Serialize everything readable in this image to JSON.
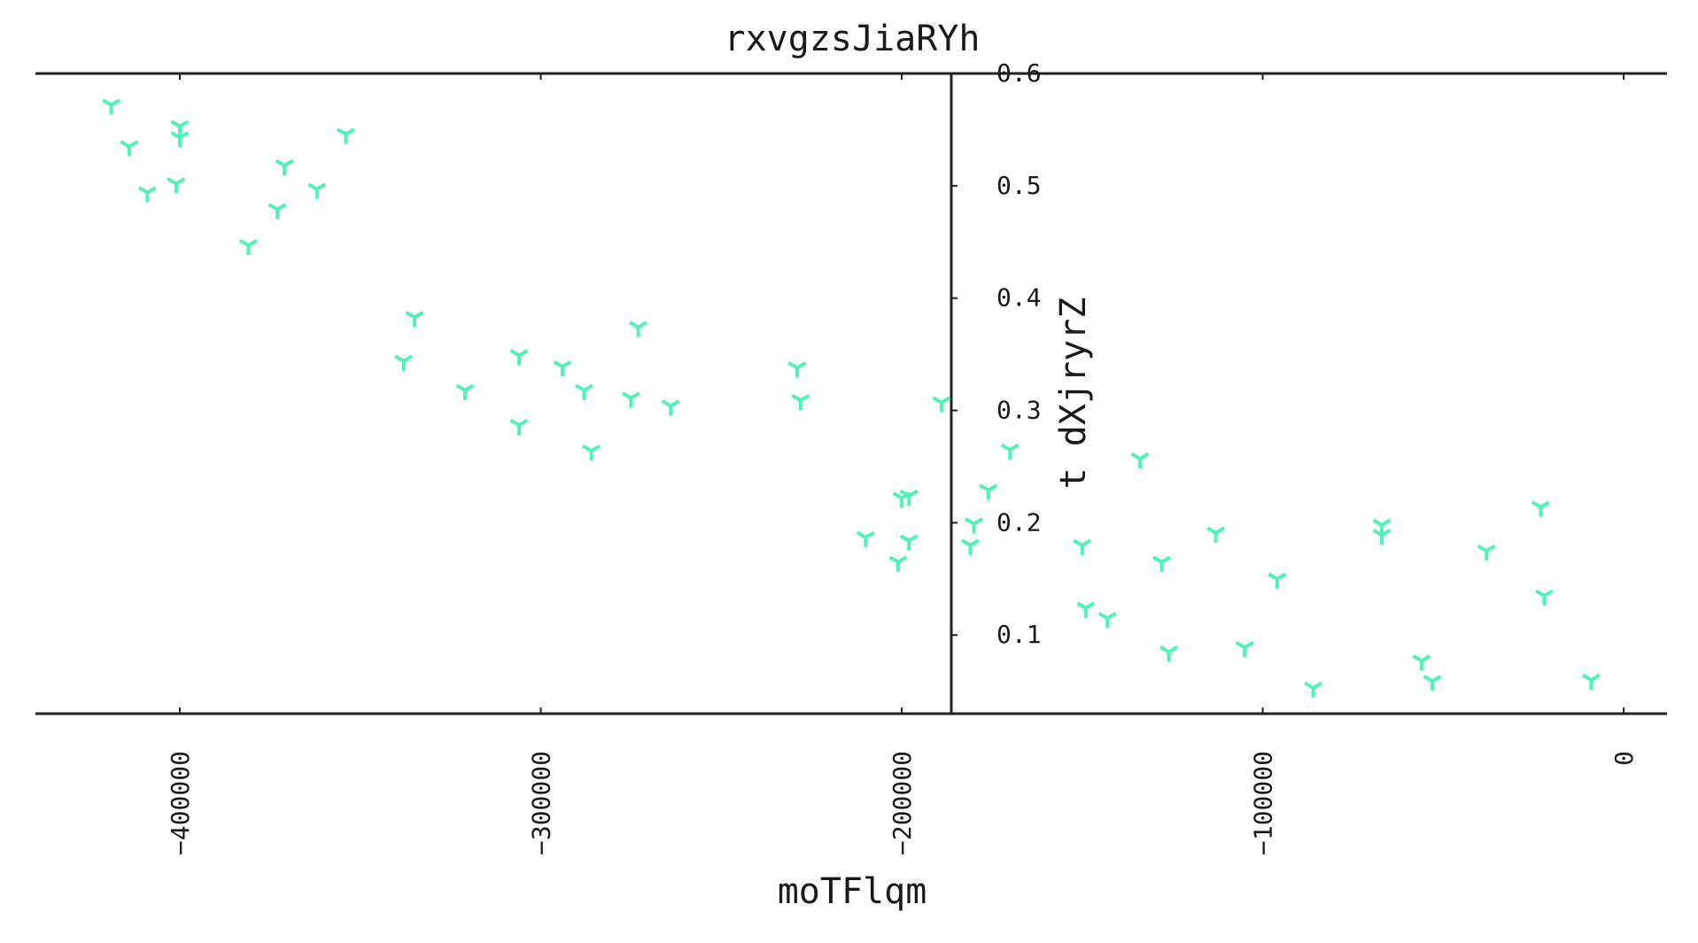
{
  "chart_data": {
    "type": "scatter",
    "title": "rxvgzsJiaRYh",
    "xlabel": "moTFlqm",
    "ylabel": "t dXjryrZ",
    "xlim": [
      -440000,
      12000
    ],
    "ylim": [
      0.03,
      0.6
    ],
    "xticks": [
      -400000,
      -300000,
      -200000,
      -100000,
      0
    ],
    "xtick_labels": [
      "−400000",
      "−300000",
      "−200000",
      "−100000",
      "0"
    ],
    "yticks": [
      0.1,
      0.2,
      0.3,
      0.4,
      0.5,
      0.6
    ],
    "ytick_labels": [
      "0.1",
      "0.2",
      "0.3",
      "0.4",
      "0.5",
      "0.6"
    ],
    "grid": false,
    "marker": "tri_down",
    "color": "#4ef3b5",
    "series": [
      {
        "name": "",
        "x": [
          -419000,
          -414000,
          -409000,
          -400000,
          -400000,
          -401000,
          -381000,
          -373000,
          -371000,
          -362000,
          -354000,
          -335000,
          -338000,
          -321000,
          -306000,
          -306000,
          -294000,
          -288000,
          -286000,
          -275000,
          -273000,
          -264000,
          -229000,
          -228000,
          -210000,
          -200000,
          -201000,
          -198000,
          -198000,
          -189000,
          -180000,
          -181000,
          -176000,
          -170000,
          -150000,
          -149000,
          -143000,
          -134000,
          -126000,
          -128000,
          -113000,
          -105000,
          -96000,
          -86000,
          -67000,
          -67000,
          -56000,
          -53000,
          -38000,
          -23000,
          -22000,
          -9000
        ],
        "y": [
          0.572,
          0.535,
          0.494,
          0.553,
          0.543,
          0.502,
          0.447,
          0.479,
          0.518,
          0.497,
          0.546,
          0.383,
          0.344,
          0.318,
          0.349,
          0.287,
          0.339,
          0.318,
          0.264,
          0.311,
          0.374,
          0.304,
          0.338,
          0.309,
          0.187,
          0.222,
          0.165,
          0.224,
          0.184,
          0.307,
          0.199,
          0.18,
          0.229,
          0.265,
          0.18,
          0.124,
          0.115,
          0.257,
          0.085,
          0.165,
          0.191,
          0.089,
          0.15,
          0.053,
          0.198,
          0.189,
          0.077,
          0.059,
          0.175,
          0.214,
          0.135,
          0.06
        ]
      }
    ]
  }
}
